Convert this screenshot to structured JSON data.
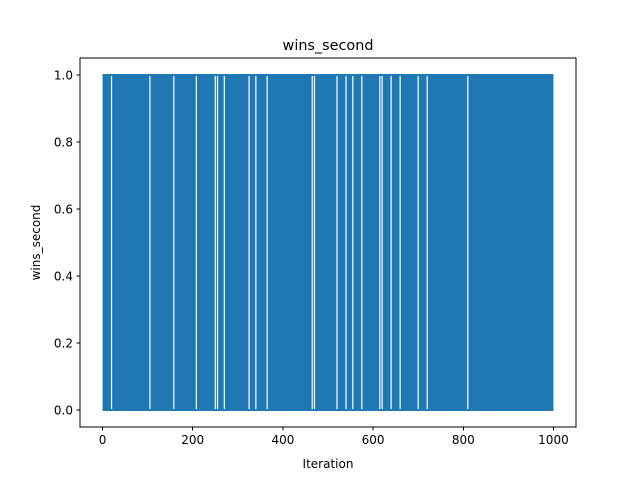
{
  "chart_data": {
    "type": "line",
    "title": "wins_second",
    "xlabel": "Iteration",
    "ylabel": "wins_second",
    "xlim": [
      -50,
      1050
    ],
    "ylim": [
      -0.05,
      1.05
    ],
    "x_ticks": [
      0,
      200,
      400,
      600,
      800,
      1000
    ],
    "y_ticks": [
      0.0,
      0.2,
      0.4,
      0.6,
      0.8,
      1.0
    ],
    "x_tick_labels": [
      "0",
      "200",
      "400",
      "600",
      "800",
      "1000"
    ],
    "y_tick_labels": [
      "0.0",
      "0.2",
      "0.4",
      "0.6",
      "0.8",
      "1.0"
    ],
    "grid": false,
    "series": [
      {
        "color": "#1f77b4",
        "x_range": [
          0,
          1000
        ],
        "value_set": [
          0,
          1
        ],
        "gap_at_x": [
          20,
          105,
          158,
          208,
          250,
          255,
          270,
          325,
          340,
          365,
          465,
          470,
          520,
          540,
          555,
          575,
          615,
          620,
          640,
          660,
          700,
          720,
          810
        ]
      }
    ]
  }
}
